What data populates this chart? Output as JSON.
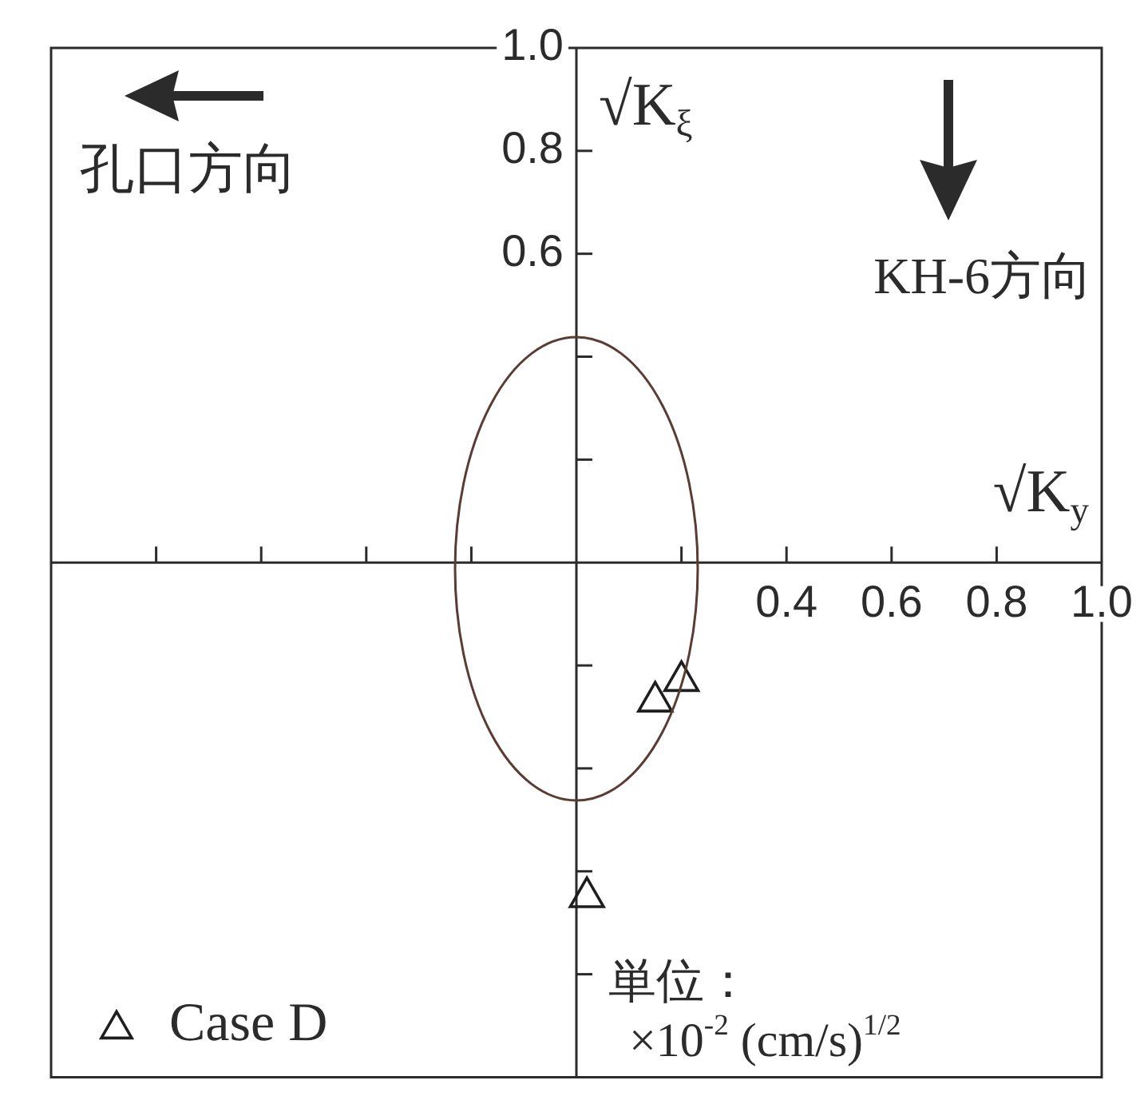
{
  "chart_data": {
    "type": "scatter",
    "xlabel": "√K$_{y}$",
    "ylabel": "√K$_{ξ}$",
    "annotations": [
      "孔口方向",
      "KH-6方向",
      "単位：",
      "×10$^{-2}$ (cm/s)$^{1/2}$"
    ],
    "xlim": [
      -1,
      1
    ],
    "ylim": [
      -1,
      1
    ],
    "xticks": [
      {
        "value": -0.8,
        "label": null
      },
      {
        "value": -0.6,
        "label": null
      },
      {
        "value": -0.4,
        "label": null
      },
      {
        "value": -0.2,
        "label": null
      },
      {
        "value": 0.2,
        "label": null
      },
      0.4,
      0.6,
      0.8,
      {
        "value": 1,
        "label": "1.0"
      }
    ],
    "yticks": [
      {
        "value": -0.8,
        "label": null
      },
      {
        "value": -0.6,
        "label": null
      },
      {
        "value": -0.4,
        "label": null
      },
      {
        "value": -0.2,
        "label": null
      },
      {
        "value": 0.2,
        "label": null
      },
      {
        "value": 0.4,
        "label": null
      },
      0.6,
      0.8,
      {
        "value": 1,
        "label": "1.0"
      }
    ],
    "grid": false,
    "legend": "bottom left",
    "series": [
      {
        "type": "scatter",
        "name": "Case D",
        "color": "#1e1e1e",
        "marker": "triangle",
        "x": [
          0.15,
          0.2,
          0.02
        ],
        "values": [
          -0.27,
          -0.23,
          -0.65
        ]
      }
    ]
  }
}
